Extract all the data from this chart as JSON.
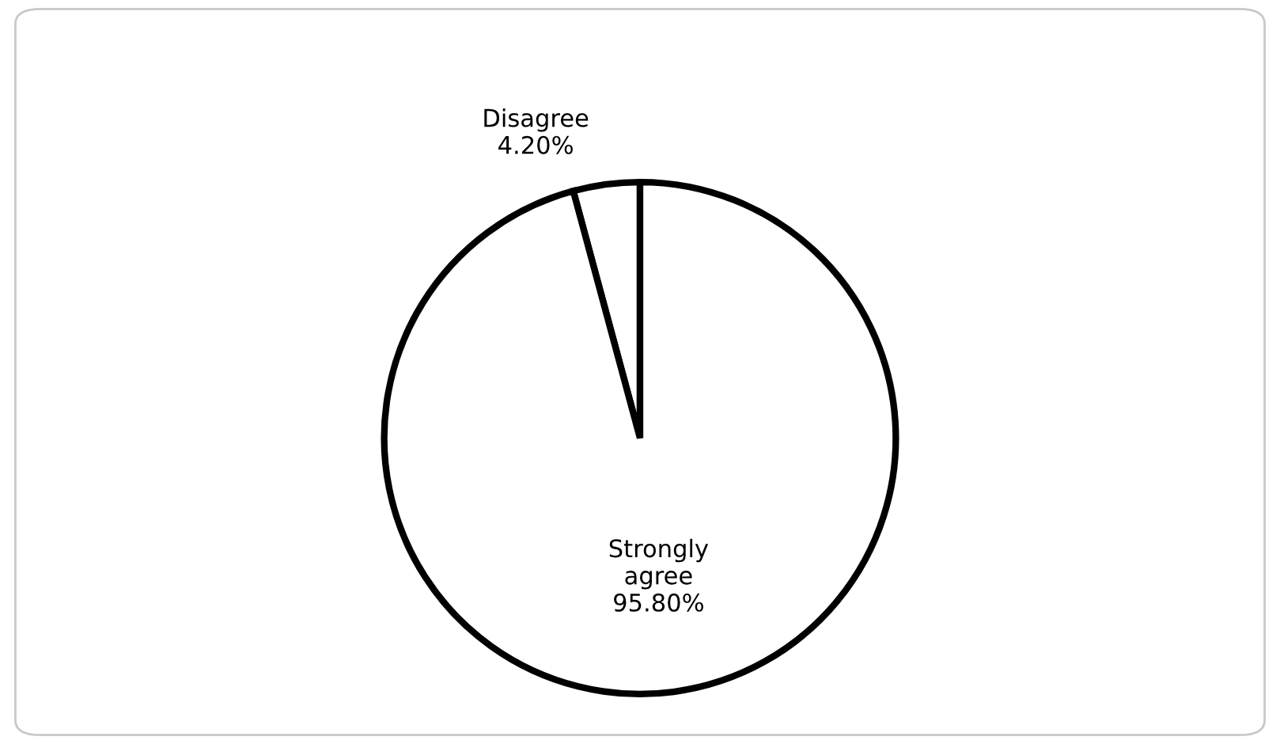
{
  "chart_data": {
    "type": "pie",
    "categories": [
      "Disagree",
      "Strongly agree"
    ],
    "values": [
      4.2,
      95.8
    ],
    "value_labels": [
      "4.20%",
      "95.80%"
    ],
    "colors": [
      "#ffffff",
      "#ffffff"
    ]
  }
}
